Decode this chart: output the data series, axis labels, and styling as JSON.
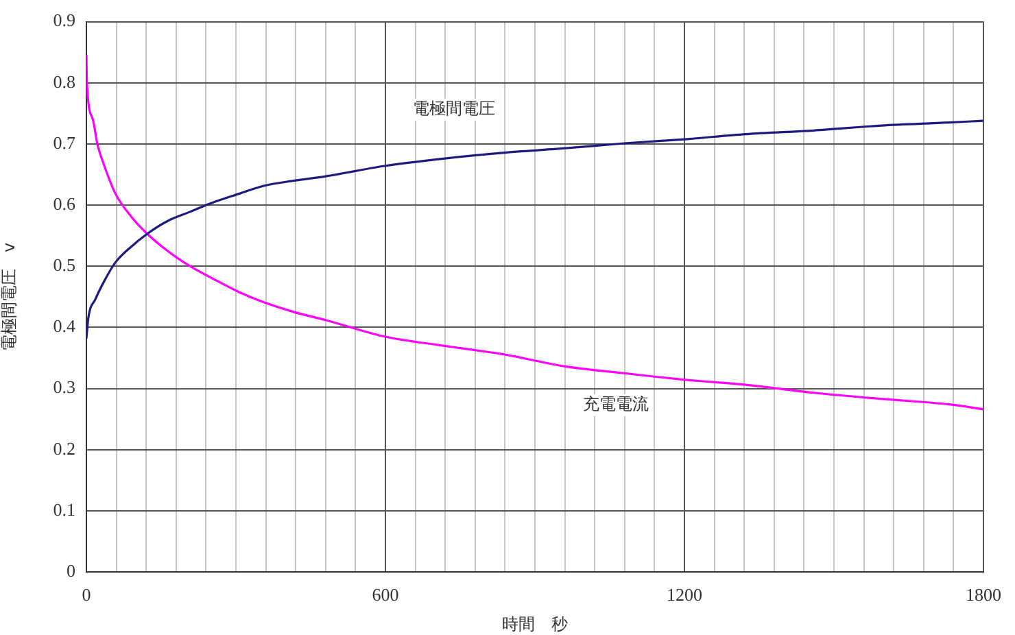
{
  "chart_data": {
    "type": "line",
    "xlabel": "時間　秒",
    "ylabel": "電極間電圧　v",
    "xlim": [
      0,
      1800
    ],
    "ylim": [
      0,
      0.9
    ],
    "xticks": [
      0,
      {
        "value": 60,
        "label": null
      },
      {
        "value": 120,
        "label": null
      },
      {
        "value": 180,
        "label": null
      },
      {
        "value": 240,
        "label": null
      },
      {
        "value": 300,
        "label": null
      },
      {
        "value": 360,
        "label": null
      },
      {
        "value": 420,
        "label": null
      },
      {
        "value": 480,
        "label": null
      },
      {
        "value": 540,
        "label": null
      },
      600,
      {
        "value": 660,
        "label": null
      },
      {
        "value": 720,
        "label": null
      },
      {
        "value": 780,
        "label": null
      },
      {
        "value": 840,
        "label": null
      },
      {
        "value": 900,
        "label": null
      },
      {
        "value": 960,
        "label": null
      },
      {
        "value": 1020,
        "label": null
      },
      {
        "value": 1080,
        "label": null
      },
      {
        "value": 1140,
        "label": null
      },
      1200,
      {
        "value": 1260,
        "label": null
      },
      {
        "value": 1320,
        "label": null
      },
      {
        "value": 1380,
        "label": null
      },
      {
        "value": 1440,
        "label": null
      },
      {
        "value": 1500,
        "label": null
      },
      {
        "value": 1560,
        "label": null
      },
      {
        "value": 1620,
        "label": null
      },
      {
        "value": 1680,
        "label": null
      },
      {
        "value": 1740,
        "label": null
      },
      1800
    ],
    "yticks": [
      0,
      0.1,
      0.2,
      0.3,
      0.4,
      0.5,
      0.6,
      0.7,
      0.8,
      0.9
    ],
    "grid": true,
    "legend": false,
    "marker": "none",
    "line_style": "solid",
    "series": [
      {
        "name": "電極間電圧",
        "color": "#1c1c80",
        "x": [
          0,
          4,
          18,
          36,
          58,
          90,
          122,
          163,
          208,
          253,
          308,
          353,
          417,
          480,
          598,
          716,
          843,
          961,
          1079,
          1206,
          1323,
          1459,
          1595,
          1731,
          1800
        ],
        "values": [
          0.382,
          0.416,
          0.446,
          0.476,
          0.506,
          0.532,
          0.553,
          0.574,
          0.589,
          0.604,
          0.619,
          0.631,
          0.64,
          0.647,
          0.664,
          0.676,
          0.686,
          0.693,
          0.701,
          0.708,
          0.716,
          0.722,
          0.73,
          0.735,
          0.738
        ]
      },
      {
        "name": "充電電流",
        "color": "#ff00ff",
        "x": [
          0,
          1,
          13,
          22,
          36,
          58,
          90,
          122,
          163,
          208,
          253,
          308,
          353,
          417,
          480,
          598,
          716,
          843,
          961,
          1079,
          1206,
          1323,
          1459,
          1595,
          1731,
          1800
        ],
        "values": [
          0.845,
          0.8,
          0.74,
          0.7,
          0.664,
          0.619,
          0.581,
          0.553,
          0.525,
          0.5,
          0.48,
          0.457,
          0.442,
          0.425,
          0.412,
          0.385,
          0.37,
          0.355,
          0.336,
          0.325,
          0.314,
          0.306,
          0.293,
          0.283,
          0.274,
          0.266
        ]
      }
    ]
  }
}
